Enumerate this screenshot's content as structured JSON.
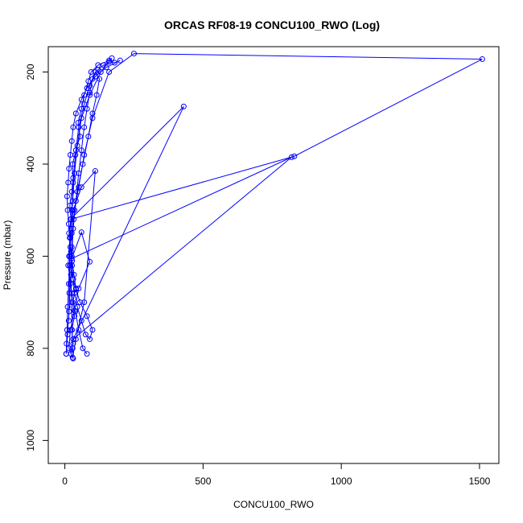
{
  "chart_data": {
    "type": "line",
    "title": "ORCAS RF08-19 CONCU100_RWO (Log)",
    "xlabel": "CONCU100_RWO",
    "ylabel": "Pressure (mbar)",
    "xlim": [
      -60,
      1570
    ],
    "ylim": [
      1050,
      145
    ],
    "y_inverted": true,
    "xticks": [
      0,
      500,
      1000,
      1500
    ],
    "yticks": [
      200,
      400,
      600,
      800,
      1000
    ],
    "grid": false,
    "legend": "none",
    "series_color": "#0000ff",
    "marker": "open-circle",
    "series": [
      {
        "x": [
          22,
          30,
          25,
          35,
          28,
          40,
          33,
          26,
          20,
          15,
          22,
          18,
          25,
          30,
          28,
          40,
          55,
          48,
          60,
          70,
          85,
          95,
          120,
          160,
          180,
          200,
          150,
          110,
          80,
          60,
          40,
          30,
          25,
          20,
          15,
          12,
          8,
          10,
          14,
          18,
          22,
          26,
          30,
          35,
          45,
          60,
          75,
          90,
          100,
          80,
          55,
          40,
          30,
          20
        ],
        "y": [
          812,
          790,
          760,
          730,
          700,
          670,
          640,
          610,
          580,
          550,
          520,
          490,
          460,
          430,
          400,
          370,
          340,
          310,
          280,
          250,
          220,
          200,
          185,
          175,
          180,
          175,
          190,
          210,
          235,
          260,
          290,
          320,
          350,
          380,
          410,
          440,
          470,
          500,
          530,
          560,
          590,
          620,
          650,
          680,
          710,
          740,
          770,
          780,
          760,
          730,
          700,
          672,
          650,
          620
        ]
      },
      {
        "x": [
          15,
          25,
          35,
          50,
          70,
          100,
          160,
          250,
          1510,
          830,
          20,
          430,
          30,
          820,
          25,
          60,
          90,
          50,
          35,
          20,
          15,
          28,
          40,
          70,
          110,
          60,
          30,
          18,
          12,
          25,
          38,
          50,
          65,
          80
        ],
        "y": [
          600,
          550,
          500,
          450,
          380,
          300,
          200,
          160,
          172,
          383,
          520,
          275,
          780,
          385,
          605,
          548,
          612,
          670,
          718,
          760,
          800,
          820,
          780,
          700,
          415,
          450,
          500,
          560,
          620,
          680,
          720,
          760,
          800,
          812
        ]
      },
      {
        "x": [
          5,
          10,
          15,
          20,
          25,
          30,
          40,
          50,
          60,
          70,
          80,
          90,
          100,
          120,
          140,
          160,
          170,
          130,
          90,
          60,
          45,
          35,
          28,
          22,
          18,
          14,
          10,
          8,
          6,
          5
        ],
        "y": [
          812,
          770,
          720,
          660,
          600,
          540,
          480,
          420,
          370,
          320,
          280,
          245,
          215,
          195,
          185,
          178,
          170,
          200,
          250,
          300,
          360,
          420,
          480,
          540,
          600,
          660,
          710,
          760,
          790,
          812
        ]
      },
      {
        "x": [
          30,
          28,
          26,
          24,
          22,
          25,
          32,
          45,
          65,
          85,
          100,
          115,
          125,
          110,
          90,
          70,
          50,
          38,
          30,
          25,
          20,
          18,
          16,
          14
        ],
        "y": [
          822,
          800,
          760,
          700,
          640,
          580,
          520,
          460,
          400,
          340,
          290,
          250,
          215,
          200,
          230,
          270,
          320,
          380,
          440,
          500,
          560,
          620,
          680,
          740
        ]
      }
    ]
  }
}
